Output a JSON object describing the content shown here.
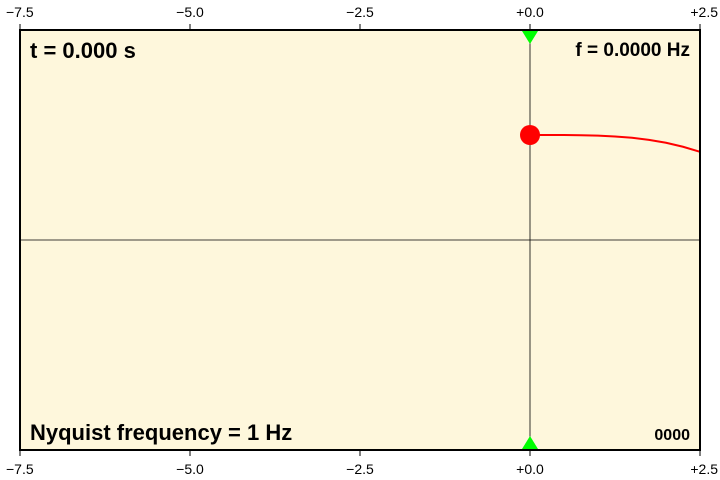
{
  "chart_data": {
    "type": "line",
    "xlim": [
      -7.5,
      2.5
    ],
    "ylim": [
      -1,
      1
    ],
    "xticks": [
      -7.5,
      -5.0,
      -2.5,
      0.0,
      2.5
    ],
    "xtick_labels": [
      "−7.5",
      "−5.0",
      "−2.5",
      "+0.0",
      "+2.5"
    ],
    "title": "",
    "xlabel": "",
    "ylabel": "",
    "grid": false,
    "background": "#fef7dc",
    "series": [
      {
        "color": "#ff0000",
        "x": [
          0.0,
          0.25,
          0.5,
          0.75,
          1.0,
          1.25,
          1.5,
          1.75,
          2.0,
          2.25,
          2.5
        ],
        "values": [
          0.5,
          0.5,
          0.5,
          0.499,
          0.497,
          0.493,
          0.487,
          0.477,
          0.463,
          0.444,
          0.42
        ]
      }
    ],
    "marker": {
      "x": 0.0,
      "y": 0.5,
      "color": "#ff0000"
    },
    "zero_line_color": "#000000",
    "triangle_color": "#00ff00",
    "labels": {
      "time": "t =  0.000 s",
      "frequency": "f = 0.0000 Hz",
      "nyquist": "Nyquist frequency = 1 Hz",
      "frame": "0000"
    }
  }
}
